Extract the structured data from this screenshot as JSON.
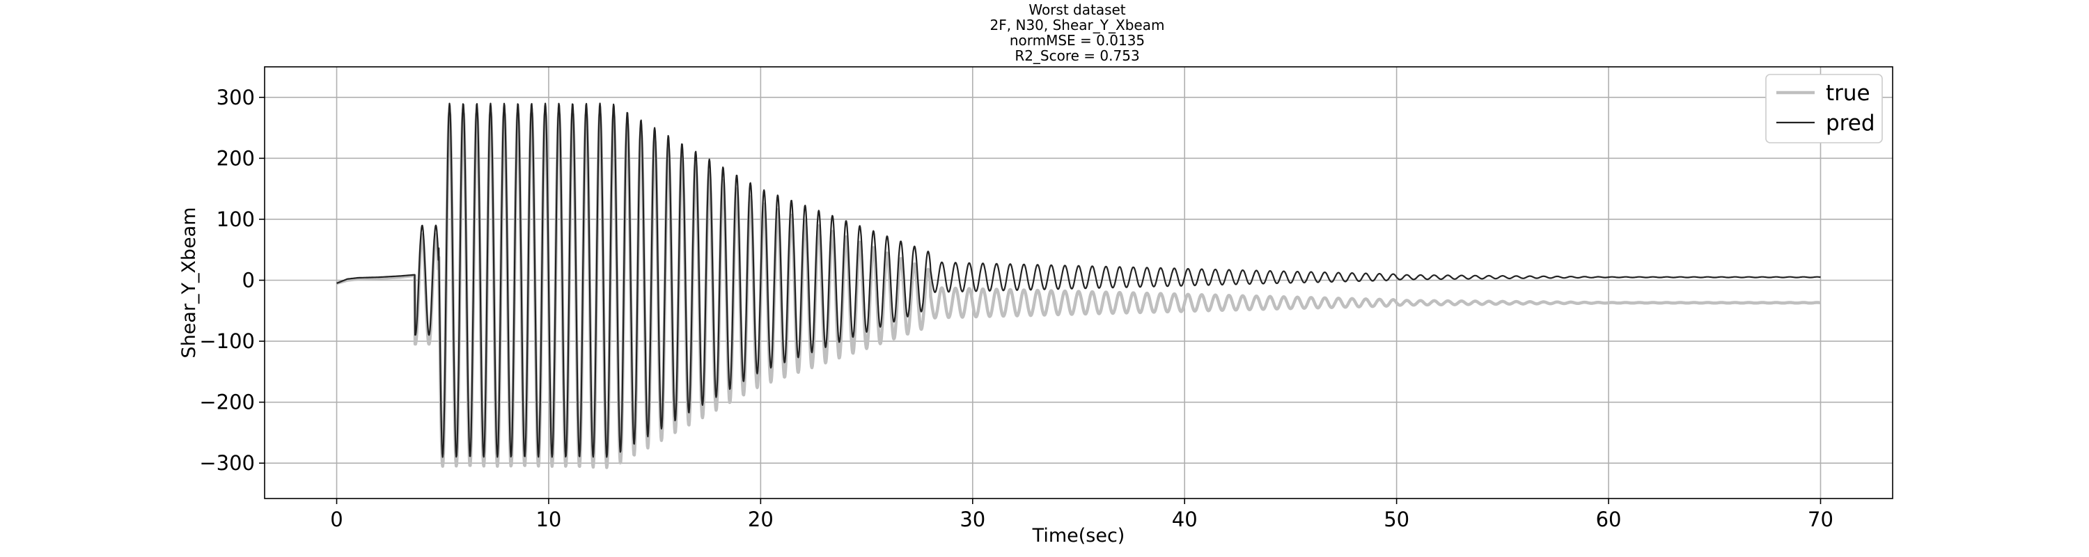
{
  "chart_data": {
    "type": "line",
    "title_lines": [
      "Worst dataset",
      "2F, N30, Shear_Y_Xbeam",
      "normMSE = 0.0135",
      "R2_Score = 0.753"
    ],
    "xlabel": "Time(sec)",
    "ylabel": "Shear_Y_Xbeam",
    "xlim": [
      -3.4,
      73.4
    ],
    "ylim": [
      -358,
      350
    ],
    "xticks": [
      0,
      10,
      20,
      30,
      40,
      50,
      60,
      70
    ],
    "yticks": [
      -300,
      -200,
      -100,
      0,
      100,
      200,
      300
    ],
    "grid": true,
    "legend_position": "top-right",
    "series": [
      {
        "name": "true",
        "color": "#bfbfbf",
        "x": [
          0,
          0.5,
          1,
          2,
          3,
          3.7,
          4.2,
          4.5,
          4.9,
          5.2,
          5.6,
          5.8,
          6.1,
          6.4,
          6.8,
          7.1,
          7.4,
          7.7,
          8.0,
          8.3,
          8.7,
          9.3,
          10.3,
          11.3,
          12.3,
          13.3,
          14.3,
          15.3,
          16.3,
          17.3,
          18.3,
          19.3,
          20.3,
          21.3,
          22.3,
          23.3,
          24.3,
          25.3,
          26.3,
          27.3,
          28.3,
          29.3,
          30.5,
          32,
          33.5,
          35,
          36.5,
          38,
          40,
          42.5,
          45,
          47.5,
          50,
          55,
          60,
          65,
          70
        ],
        "y": [
          -5,
          0,
          2,
          3,
          5,
          8,
          -60,
          -90,
          190,
          40,
          -280,
          310,
          -325,
          300,
          -310,
          300,
          -305,
          300,
          -300,
          290,
          -220,
          -230,
          -220,
          -260,
          -270,
          -280,
          -260,
          -240,
          -210,
          -195,
          -190,
          -185,
          -170,
          -150,
          -140,
          -120,
          -110,
          -80,
          -75,
          -60,
          -52,
          -45,
          -42,
          -40,
          -45,
          -38,
          -40,
          -38,
          -38,
          -37,
          -37,
          -37,
          -37,
          -37,
          -37,
          -37,
          -37
        ]
      },
      {
        "name": "pred",
        "color": "#222222",
        "x": [
          0,
          0.5,
          1,
          2,
          3,
          3.7,
          4.2,
          4.5,
          4.9,
          5.2,
          5.6,
          5.8,
          6.1,
          6.4,
          6.8,
          7.1,
          7.4,
          7.7,
          8.0,
          8.3,
          8.7,
          9.3,
          10.3,
          11.3,
          12.3,
          13.3,
          14.3,
          15.3,
          16.3,
          17.3,
          18.3,
          19.3,
          20.3,
          21.3,
          22.3,
          23.3,
          24.3,
          25.3,
          26.3,
          27.3,
          28.3,
          29.3,
          30.5,
          32,
          33.5,
          35,
          36.5,
          38,
          40,
          42.5,
          45,
          47.5,
          50,
          55,
          60,
          65,
          70
        ],
        "y": [
          -5,
          2,
          4,
          5,
          7,
          9,
          -50,
          -90,
          195,
          40,
          -280,
          315,
          -325,
          290,
          -305,
          295,
          -300,
          290,
          -300,
          290,
          -210,
          -220,
          -210,
          -250,
          -260,
          -270,
          -240,
          -220,
          -190,
          -180,
          -170,
          -160,
          -140,
          -120,
          -110,
          -90,
          -80,
          -50,
          -40,
          -30,
          -20,
          -10,
          12,
          18,
          22,
          20,
          20,
          18,
          15,
          12,
          10,
          8,
          6,
          5,
          5,
          5,
          5
        ]
      }
    ]
  }
}
